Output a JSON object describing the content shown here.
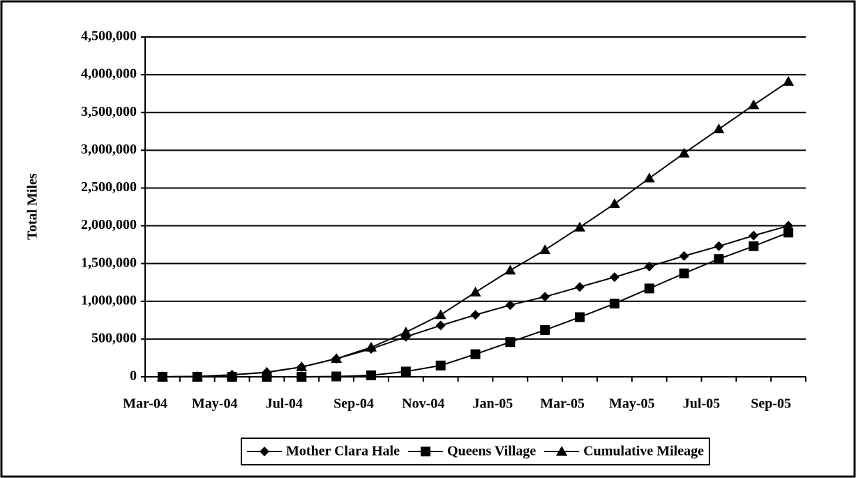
{
  "chart_data": {
    "type": "line",
    "y_label": "Total Miles",
    "categories": [
      "Mar-04",
      null,
      "May-04",
      null,
      "Jul-04",
      null,
      "Sep-04",
      null,
      "Nov-04",
      null,
      "Jan-05",
      null,
      "Mar-05",
      null,
      "May-05",
      null,
      "Jul-05",
      null,
      "Sep-05"
    ],
    "series": [
      {
        "name": "Mother Clara Hale",
        "color": "#000000",
        "marker": "diamond",
        "values": [
          0,
          5000,
          25000,
          60000,
          130000,
          240000,
          370000,
          530000,
          680000,
          820000,
          950000,
          1060000,
          1190000,
          1320000,
          1460000,
          1600000,
          1730000,
          1870000,
          2000000
        ]
      },
      {
        "name": "Queens Village",
        "color": "#000000",
        "marker": "square",
        "values": [
          0,
          0,
          0,
          0,
          0,
          5000,
          20000,
          70000,
          150000,
          300000,
          460000,
          620000,
          790000,
          970000,
          1170000,
          1370000,
          1560000,
          1730000,
          1910000
        ]
      },
      {
        "name": "Cumulative Mileage",
        "color": "#000000",
        "marker": "triangle",
        "values": [
          0,
          5000,
          25000,
          60000,
          130000,
          240000,
          390000,
          590000,
          820000,
          1120000,
          1410000,
          1680000,
          1980000,
          2290000,
          2630000,
          2960000,
          3280000,
          3600000,
          3910000
        ]
      }
    ],
    "ylim": [
      0,
      4500000
    ],
    "yticks": [
      0,
      {
        "value": 500000,
        "label": "500,000"
      },
      {
        "value": 1000000,
        "label": "1,000,000"
      },
      {
        "value": 1500000,
        "label": "1,500,000"
      },
      {
        "value": 2000000,
        "label": "2,000,000"
      },
      {
        "value": 2500000,
        "label": "2,500,000"
      },
      {
        "value": 3000000,
        "label": "3,000,000"
      },
      {
        "value": 3500000,
        "label": "3,500,000"
      },
      {
        "value": 4000000,
        "label": "4,000,000"
      },
      {
        "value": 4500000,
        "label": "4,500,000"
      }
    ],
    "grid": true,
    "legend": "bottom"
  }
}
